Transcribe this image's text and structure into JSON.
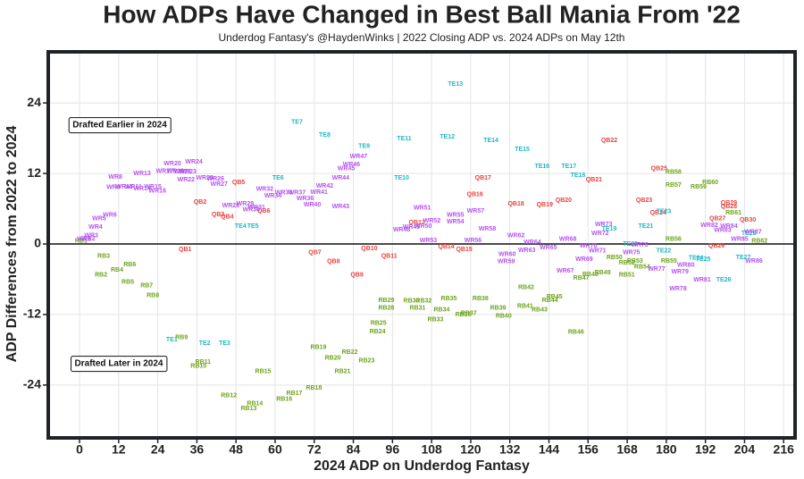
{
  "chart_data": {
    "type": "scatter",
    "title": "How ADPs Have Changed in Best Ball Mania From '22",
    "subtitle": "Underdog Fantasy's @HaydenWinks | 2022 Closing ADP vs. 2024 ADPs on May 12th",
    "x_label": "2024 ADP on Underdog Fantasy",
    "y_label": "ADP Differences from 2022 to 2024",
    "annotations": [
      "Drafted Earlier in 2024",
      "Drafted Later in 2024"
    ],
    "xlim": [
      -9.6,
      219.5
    ],
    "ylim": [
      -33,
      32.7
    ],
    "xticks": [
      0,
      12,
      24,
      36,
      48,
      60,
      72,
      84,
      96,
      108,
      120,
      132,
      144,
      156,
      168,
      180,
      192,
      204,
      216
    ],
    "yticks": [
      -24,
      -12,
      0,
      12,
      24
    ],
    "grid": true,
    "series": [
      {
        "color": "#e8423f",
        "labels": [
          "QB1",
          "QB2",
          "QB3",
          "QB4",
          "QB5",
          "QB6",
          "QB7",
          "QB8",
          "QB9",
          "QB10",
          "QB11",
          "QB12",
          "QB14",
          "QB15",
          "QB16",
          "QB17",
          "QB18",
          "QB19",
          "QB20",
          "QB21",
          "QB22",
          "QB23",
          "QB24",
          "QB25",
          "QB26",
          "QB27",
          "QB28",
          "QB29",
          "QB30"
        ],
        "x": [
          32.4,
          37,
          42.5,
          45.3,
          48.8,
          56.5,
          72.2,
          77.9,
          85.1,
          88.9,
          95,
          103.5,
          112.5,
          118,
          121.3,
          123.8,
          133.9,
          142.7,
          148.5,
          157.8,
          162.5,
          173.2,
          177.5,
          177.8,
          195.4,
          195.7,
          199.2,
          199.2,
          205
        ],
        "values": [
          -0.9,
          7.1,
          5,
          4.6,
          10.5,
          5.6,
          -1.5,
          -3,
          -5.3,
          -0.8,
          -2.1,
          3.6,
          -0.5,
          -0.9,
          8.4,
          11.2,
          6.8,
          6.7,
          7.4,
          10.9,
          17.6,
          7.4,
          5.3,
          12.8,
          -0.3,
          4.3,
          6.4,
          7,
          4.1
        ]
      },
      {
        "color": "#6ea31b",
        "labels": [
          "RB1",
          "RB2",
          "RB3",
          "RB4",
          "RB5",
          "RB6",
          "RB7",
          "RB8",
          "RB9",
          "RB10",
          "RB11",
          "RB12",
          "RB13",
          "RB14",
          "RB15",
          "RB16",
          "RB17",
          "RB18",
          "RB19",
          "RB20",
          "RB21",
          "RB22",
          "RB23",
          "RB24",
          "RB25",
          "RB28",
          "RB29",
          "RB30",
          "RB31",
          "RB32",
          "RB33",
          "RB34",
          "RB35",
          "RB36",
          "RB37",
          "RB38",
          "RB39",
          "RB40",
          "RB41",
          "RB42",
          "RB43",
          "RB44",
          "RB45",
          "RB46",
          "RB47",
          "RB48",
          "RB49",
          "RB50",
          "RB51",
          "RB52",
          "RB53",
          "RB54",
          "RB55",
          "RB56",
          "RB57",
          "RB58",
          "RB59",
          "RB60",
          "RB61",
          "RB62"
        ],
        "x": [
          0.5,
          6.6,
          7.4,
          11.5,
          14.8,
          15.4,
          20.6,
          22.5,
          31.3,
          36.5,
          37.9,
          45.8,
          51.9,
          53.8,
          56.3,
          62.8,
          65.9,
          71.9,
          73.3,
          77.7,
          80.7,
          82.9,
          88.1,
          91.4,
          91.7,
          94.1,
          94.1,
          101.8,
          103.7,
          105.6,
          109.2,
          111.1,
          113.3,
          117.7,
          119.4,
          123,
          128.4,
          130.1,
          136.7,
          137,
          141.1,
          144.3,
          145.7,
          152.3,
          153.9,
          156.7,
          160.5,
          164.1,
          167.9,
          167.9,
          170.4,
          172.6,
          180.8,
          182.2,
          182.2,
          182.2,
          189.9,
          193.5,
          200.6,
          208.6
        ],
        "values": [
          0.5,
          -5.3,
          -2.1,
          -4.4,
          -6.5,
          -3.5,
          -7.1,
          -8.8,
          -15.9,
          -20.8,
          -20.1,
          -25.8,
          -28,
          -27.2,
          -21.7,
          -26.4,
          -25.4,
          -24.5,
          -17.6,
          -19.4,
          -21.7,
          -18.4,
          -19.9,
          -14.9,
          -13.5,
          -10.9,
          -9.6,
          -9.7,
          -10.9,
          -9.7,
          -12.9,
          -11.2,
          -9.3,
          -12,
          -11.8,
          -9.3,
          -10.9,
          -12.3,
          -10.6,
          -7.4,
          -11.2,
          -9.6,
          -9,
          -15,
          -5.8,
          -5.2,
          -4.9,
          -2.3,
          -5.3,
          -3.2,
          -2.9,
          -3.9,
          -2.9,
          0.8,
          10,
          12.2,
          9.7,
          10.5,
          5.3,
          0.5
        ]
      },
      {
        "color": "#1fb8c4",
        "labels": [
          "TE1",
          "TE2",
          "TE3",
          "TE4",
          "TE5",
          "TE6",
          "TE7",
          "TE8",
          "TE9",
          "TE10",
          "TE11",
          "TE12",
          "TE13",
          "TE14",
          "TE15",
          "TE16",
          "TE17",
          "TE18",
          "TE19",
          "TE20",
          "TE21",
          "TE22",
          "TE23",
          "TE24",
          "TE25",
          "TE26",
          "TE27",
          "TE28"
        ],
        "x": [
          28.3,
          38.4,
          44.5,
          49.4,
          53.2,
          60.9,
          66.7,
          75.2,
          87.3,
          98.8,
          99.6,
          112.8,
          115.3,
          126.2,
          135.8,
          141.9,
          150.1,
          152.9,
          162.5,
          169,
          173.7,
          179.2,
          179.2,
          189.1,
          191.3,
          197.6,
          203.6,
          205.3
        ],
        "values": [
          -16.3,
          -16.9,
          -16.9,
          3,
          3,
          11.2,
          20.7,
          18.5,
          16.6,
          11.2,
          17.9,
          18.2,
          27.2,
          17.6,
          16.1,
          13.2,
          13.2,
          11.7,
          2.6,
          0,
          3,
          -1.2,
          5.5,
          -2.4,
          -2.6,
          -6.1,
          -2.3,
          1.8
        ]
      },
      {
        "color": "#b553f0",
        "labels": [
          "WR1",
          "WR2",
          "WR3",
          "WR4",
          "WR5",
          "WR6",
          "WR8",
          "WR9",
          "WR10",
          "WR11",
          "WR13",
          "WR14",
          "WR15",
          "WR16",
          "WR17",
          "WR19",
          "WR20",
          "WR21",
          "WR22",
          "WR23",
          "WR24",
          "WR25",
          "WR26",
          "WR27",
          "WR28",
          "WR29",
          "WR30",
          "WR31",
          "WR32",
          "WR33",
          "WR34",
          "WR37",
          "WR36",
          "WR40",
          "WR41",
          "WR42",
          "WR43",
          "WR44",
          "WR45",
          "WR46",
          "WR47",
          "WR48",
          "WR49",
          "WR50",
          "WR51",
          "WR52",
          "WR53",
          "WR54",
          "WR55",
          "WR56",
          "WR57",
          "WR58",
          "WR59",
          "WR60",
          "WR62",
          "WR63",
          "WR64",
          "WR65",
          "WR67",
          "WR68",
          "WR69",
          "WR70",
          "WR71",
          "WR72",
          "WR73",
          "WR75",
          "WR76",
          "WR77",
          "WR78",
          "WR79",
          "WR80",
          "WR81",
          "WR82",
          "WR83",
          "WR84",
          "WR85",
          "WR86",
          "WR87"
        ],
        "x": [
          1.4,
          2.7,
          3.6,
          4.9,
          6,
          9.3,
          11,
          10.4,
          13.7,
          16.5,
          19.2,
          19.2,
          22.5,
          23.9,
          26.1,
          29.4,
          28.5,
          31.6,
          32.7,
          33.2,
          35.1,
          38.4,
          41.7,
          42.8,
          46.4,
          50.8,
          52.7,
          54.3,
          56.8,
          62.6,
          59.3,
          66.7,
          69.2,
          71.4,
          73.5,
          75.2,
          80.1,
          80.1,
          81.8,
          83.4,
          85.6,
          98.8,
          101.8,
          105.4,
          105.1,
          108.1,
          107,
          115.3,
          115.3,
          120.7,
          121.5,
          125.1,
          130.9,
          131.2,
          133.9,
          137.2,
          138.9,
          143.8,
          149,
          149.8,
          154.8,
          156.1,
          158.9,
          159.7,
          160.8,
          169.3,
          171.8,
          177,
          183.6,
          184.2,
          186,
          191,
          193.2,
          197.3,
          199.2,
          202.5,
          206.9,
          206.6
        ],
        "values": [
          0.8,
          0.9,
          1.4,
          2.9,
          4.3,
          4.9,
          11.4,
          9.6,
          9.7,
          9.7,
          12,
          9.4,
          9.7,
          9,
          12.4,
          12.4,
          13.7,
          12.3,
          10.9,
          12.3,
          14,
          11.2,
          11.1,
          10.2,
          6.5,
          6.8,
          5.8,
          6.2,
          9.3,
          8.7,
          8.2,
          8.7,
          7.7,
          6.7,
          8.8,
          9.9,
          6.4,
          11.2,
          12.8,
          13.5,
          14.9,
          2.4,
          2.9,
          3,
          6.1,
          3.9,
          0.6,
          3.8,
          4.9,
          0.6,
          5.6,
          2.6,
          -3,
          -1.8,
          1.4,
          -1.1,
          0.3,
          -0.6,
          -4.6,
          0.8,
          -2.6,
          -0.3,
          -1.2,
          1.8,
          3.3,
          -1.5,
          -0.2,
          -4.3,
          -7.6,
          -4.7,
          -3.6,
          -6.1,
          3.2,
          2.3,
          3,
          0.8,
          -2.9,
          2
        ]
      }
    ]
  }
}
